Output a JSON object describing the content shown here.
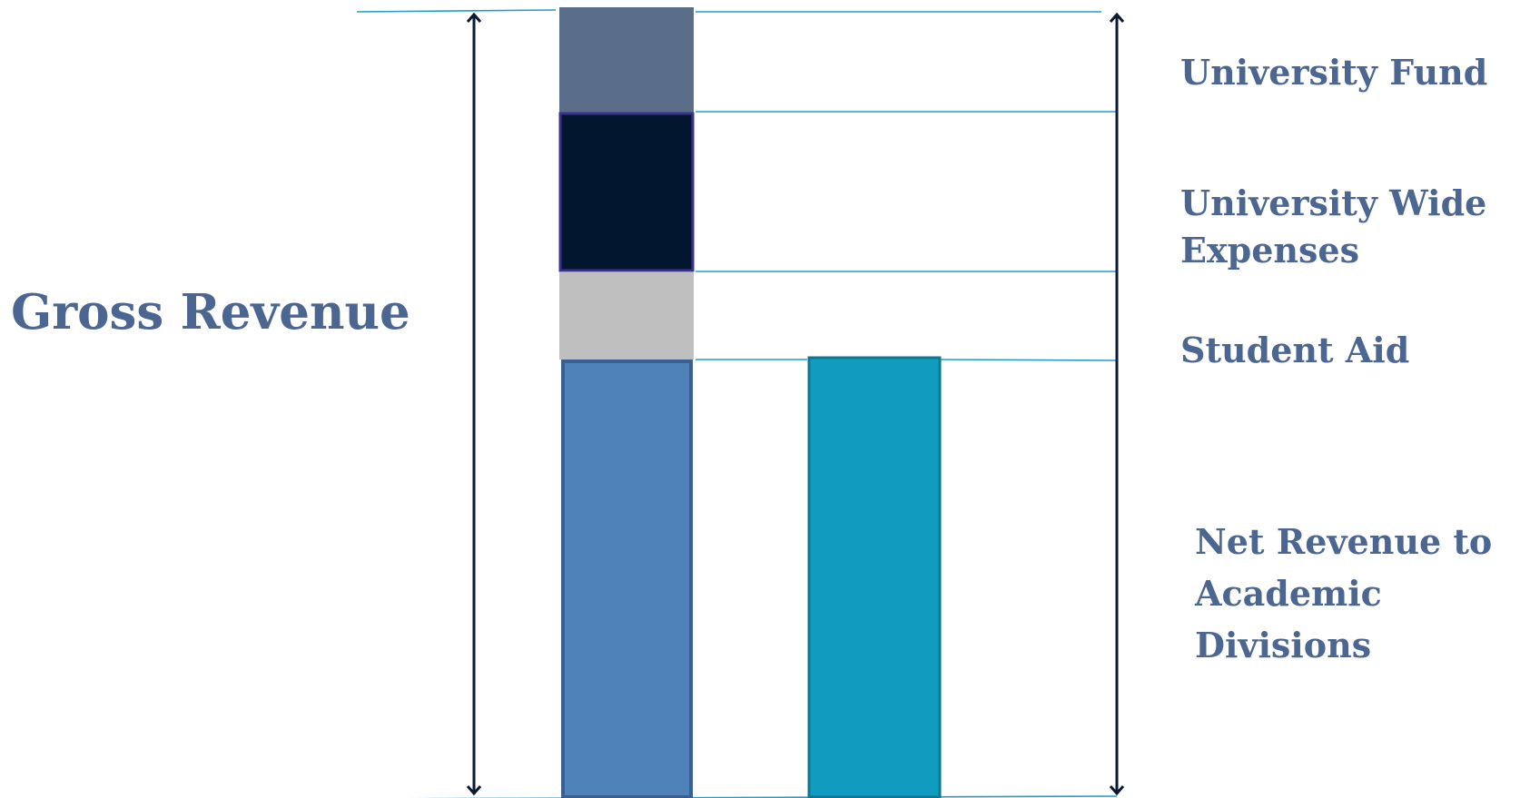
{
  "labels": {
    "gross_revenue": "Gross Revenue",
    "university_fund": "University Fund",
    "university_wide_expenses": "University Wide Expenses",
    "student_aid": "Student Aid",
    "net_revenue": "Net Revenue to Academic Divisions"
  },
  "colors": {
    "text": "#4b6691",
    "guide_line": "#1f9ec9",
    "arrow": "#0b1a33",
    "university_fund_fill": "#5a6e89",
    "university_wide_expenses_fill": "#02172f",
    "university_wide_expenses_border": "#3a318f",
    "student_aid_fill": "#bfbfbf",
    "net_revenue_fill": "#5082ba",
    "net_revenue_border": "#3b5f8f",
    "net_revenue_bar2_fill": "#0f9cbf",
    "net_revenue_bar2_border": "#117791"
  }
}
